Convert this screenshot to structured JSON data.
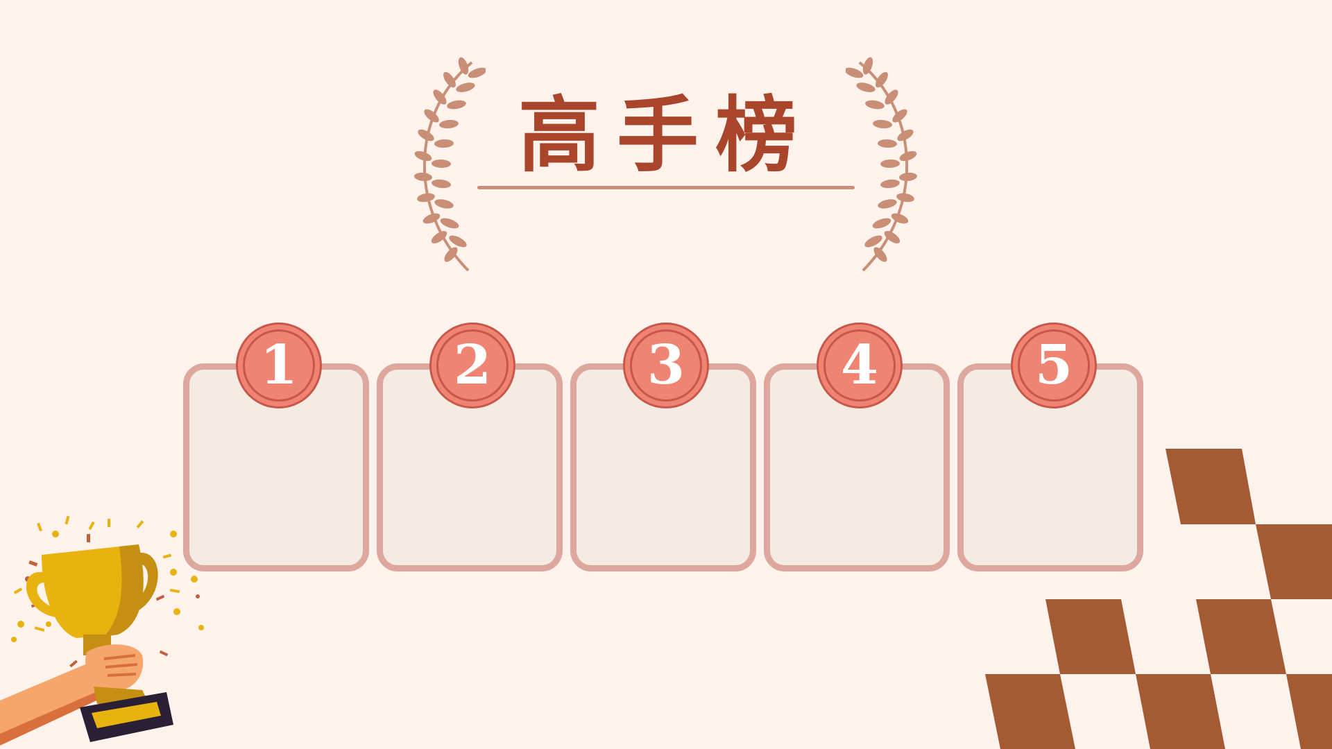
{
  "title": "高手榜",
  "ranks": [
    "1",
    "2",
    "3",
    "4",
    "5"
  ],
  "colors": {
    "background": "#fdf3ec",
    "title": "#a8452a",
    "accent_brown": "#a45b33",
    "laurel": "#c88e76",
    "card_border": "#dea79d",
    "card_fill": "#f4ebe2",
    "badge_fill": "#f08472",
    "badge_ring": "#c9564a",
    "trophy_gold": "#e8b30f"
  },
  "icons": {
    "laurel": "laurel-wreath-icon",
    "trophy": "trophy-in-hand-icon",
    "checker": "checkered-flag-icon"
  }
}
